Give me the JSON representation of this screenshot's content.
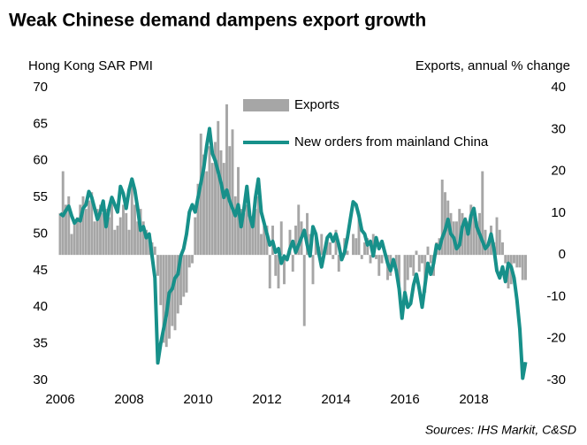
{
  "chart_data": {
    "type": "combo",
    "title": "Weak Chinese demand dampens export growth",
    "y_label": "Hong Kong SAR PMI",
    "y2_label": "Exports, annual % change",
    "source": "Sources: IHS Markit, C&SD",
    "categories": [
      "2006",
      null,
      null,
      null,
      null,
      null,
      null,
      null,
      null,
      null,
      null,
      null,
      null,
      null,
      null,
      null,
      null,
      null,
      null,
      null,
      null,
      null,
      null,
      null,
      "2008",
      null,
      null,
      null,
      null,
      null,
      null,
      null,
      null,
      null,
      null,
      null,
      null,
      null,
      null,
      null,
      null,
      null,
      null,
      null,
      null,
      null,
      null,
      null,
      "2010",
      null,
      null,
      null,
      null,
      null,
      null,
      null,
      null,
      null,
      null,
      null,
      null,
      null,
      null,
      null,
      null,
      null,
      null,
      null,
      null,
      null,
      null,
      null,
      "2012",
      null,
      null,
      null,
      null,
      null,
      null,
      null,
      null,
      null,
      null,
      null,
      null,
      null,
      null,
      null,
      null,
      null,
      null,
      null,
      null,
      null,
      null,
      null,
      "2014",
      null,
      null,
      null,
      null,
      null,
      null,
      null,
      null,
      null,
      null,
      null,
      null,
      null,
      null,
      null,
      null,
      null,
      null,
      null,
      null,
      null,
      null,
      null,
      "2016",
      null,
      null,
      null,
      null,
      null,
      null,
      null,
      null,
      null,
      null,
      null,
      null,
      null,
      null,
      null,
      null,
      null,
      null,
      null,
      null,
      null,
      null,
      null,
      "2018",
      null,
      null,
      null,
      null,
      null,
      null,
      null,
      null,
      null,
      null,
      null,
      null,
      null,
      null,
      null,
      null,
      null,
      null
    ],
    "series": [
      {
        "name": "Exports",
        "type": "bar",
        "axis": "y2",
        "color": "#a6a6a6",
        "values": [
          10,
          20,
          12,
          14,
          5,
          8,
          9,
          12,
          14,
          11,
          13,
          15,
          8,
          11,
          12,
          10,
          11,
          9,
          14,
          6,
          7,
          9,
          12,
          10,
          6,
          18,
          12,
          8,
          11,
          8,
          6,
          5,
          3,
          2,
          -5,
          -12,
          -21,
          -22,
          -20,
          -17,
          -18,
          -14,
          -12,
          -10,
          -9,
          -3,
          -2,
          9,
          17,
          29,
          24,
          20,
          26,
          22,
          27,
          32,
          25,
          22,
          36,
          26,
          30,
          14,
          21,
          11,
          10,
          12,
          10,
          9,
          11,
          14,
          5,
          7,
          7,
          -8,
          7,
          -5,
          -8,
          8,
          -7,
          0,
          6,
          -4,
          7,
          12,
          8,
          -17,
          10,
          5,
          -7,
          4,
          2,
          5,
          0,
          4,
          3,
          -1,
          6,
          -4,
          0,
          4,
          1,
          0,
          5,
          4,
          10,
          -1,
          3,
          4,
          -2,
          5,
          -1,
          -5,
          -2,
          0,
          -6,
          -5,
          0,
          -4,
          -8,
          0,
          -12,
          -6,
          -3,
          -5,
          1,
          -4,
          -2,
          -9,
          2,
          -2,
          -5,
          3,
          4,
          18,
          15,
          13,
          10,
          8,
          8,
          11,
          10,
          9,
          8,
          12,
          11,
          8,
          10,
          20,
          6,
          3,
          7,
          3,
          9,
          6,
          3,
          -2,
          -8,
          -7,
          -2,
          -3,
          -3,
          -6,
          -6
        ]
      },
      {
        "name": "New orders from mainland China",
        "type": "line",
        "axis": "y",
        "color": "#17908a",
        "values": [
          52.8,
          52.5,
          53.2,
          53.8,
          52.5,
          51.5,
          52.0,
          51.8,
          53.5,
          54.0,
          55.8,
          55.0,
          53.5,
          52.0,
          53.0,
          54.5,
          51.0,
          53.5,
          55.0,
          54.0,
          53.0,
          56.5,
          55.5,
          53.5,
          56.0,
          57.5,
          56.0,
          53.5,
          50.5,
          51.0,
          49.5,
          50.0,
          47.0,
          44.0,
          32.4,
          35.0,
          37.0,
          39.0,
          42.0,
          42.5,
          44.0,
          44.5,
          47.0,
          48.0,
          50.0,
          53.0,
          54.0,
          53.0,
          55.0,
          57.0,
          59.0,
          62.0,
          64.4,
          61.0,
          60.0,
          58.5,
          57.0,
          55.0,
          56.0,
          54.5,
          53.5,
          52.5,
          54.0,
          51.0,
          53.5,
          56.5,
          52.5,
          51.0,
          55.0,
          57.5,
          53.0,
          51.5,
          50.0,
          48.5,
          49.0,
          47.5,
          48.0,
          46.0,
          47.0,
          46.5,
          48.0,
          49.0,
          47.5,
          48.5,
          49.5,
          50.5,
          48.5,
          47.0,
          51.0,
          50.0,
          47.5,
          45.5,
          47.5,
          49.5,
          50.0,
          49.0,
          50.0,
          48.5,
          46.5,
          47.5,
          49.5,
          52.0,
          54.4,
          54.0,
          52.5,
          50.5,
          50.0,
          48.5,
          49.0,
          47.0,
          49.5,
          48.0,
          49.0,
          47.5,
          46.0,
          45.0,
          46.5,
          45.0,
          42.5,
          38.5,
          42.0,
          40.0,
          40.5,
          43.0,
          44.5,
          42.5,
          40.0,
          43.0,
          46.0,
          44.5,
          46.0,
          48.5,
          48.0,
          49.5,
          50.5,
          52.0,
          50.0,
          49.5,
          48.0,
          48.5,
          51.0,
          52.0,
          50.0,
          52.5,
          53.5,
          51.0,
          50.0,
          49.0,
          48.0,
          48.5,
          50.0,
          48.0,
          45.0,
          44.0,
          45.5,
          43.5,
          46.0,
          45.5,
          44.0,
          41.0,
          37.0,
          30.3,
          32.5
        ]
      }
    ],
    "ylim": [
      30,
      70
    ],
    "yticks": [
      30,
      35,
      40,
      45,
      50,
      55,
      60,
      65,
      70
    ],
    "y2lim": [
      -30,
      40
    ],
    "y2ticks": [
      -30,
      -20,
      -10,
      0,
      10,
      20,
      30,
      40
    ],
    "grid": false,
    "legend": "top"
  }
}
